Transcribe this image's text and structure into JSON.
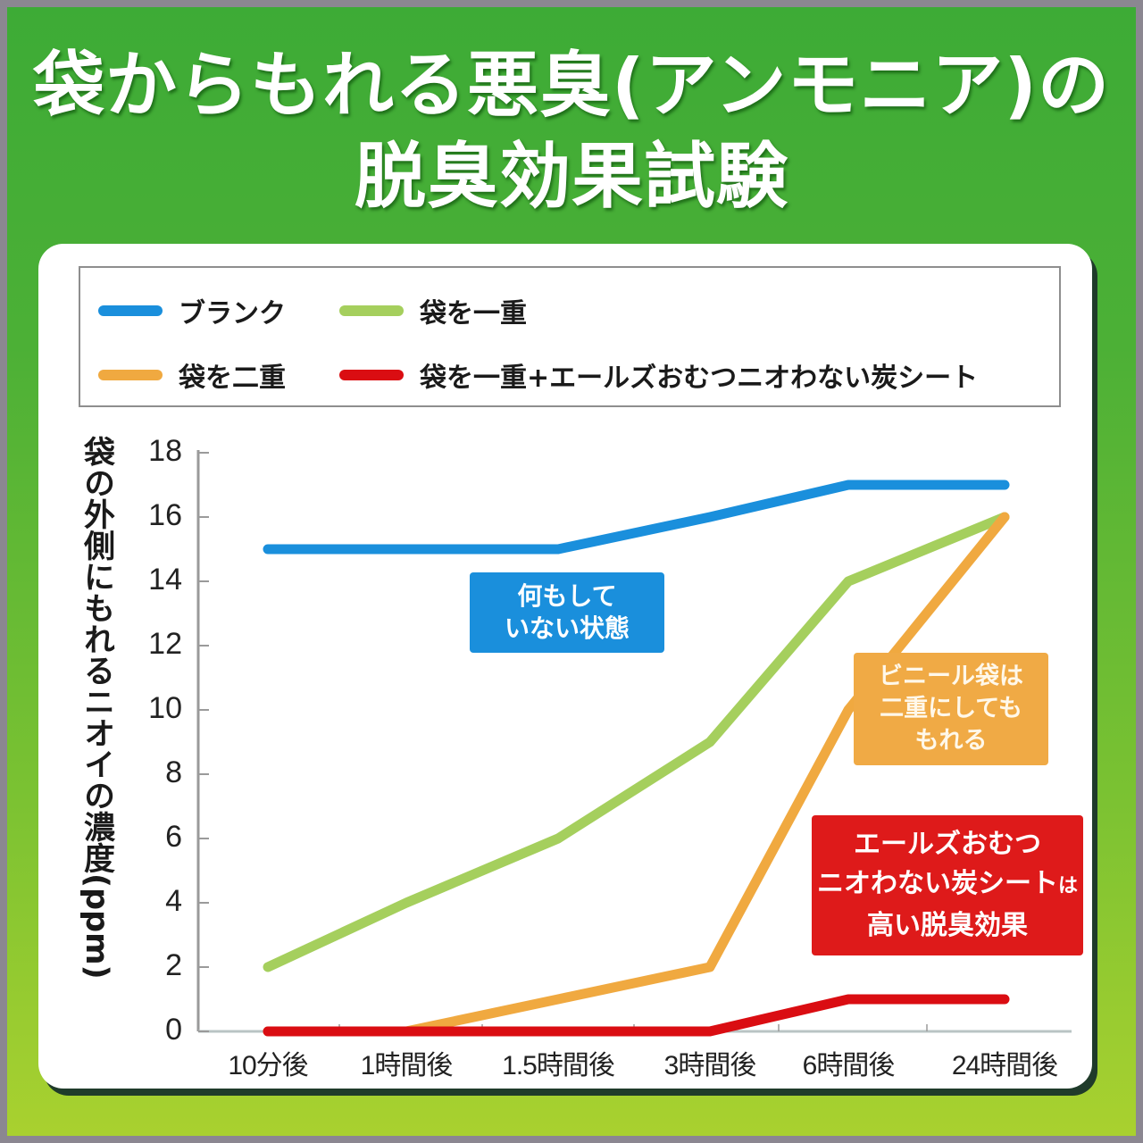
{
  "header": {
    "title_line1": "袋からもれる悪臭(アンモニア)の",
    "title_line2": "脱臭効果試験"
  },
  "legend": {
    "items": [
      {
        "label": "ブランク",
        "color": "#1a8fdc"
      },
      {
        "label": "袋を一重",
        "color": "#a5cf5d"
      },
      {
        "label": "袋を二重",
        "color": "#f0a940"
      },
      {
        "label": "袋を一重+エールズおむつニオわない炭シート",
        "color": "#da0d12"
      }
    ]
  },
  "axes": {
    "ylabel": "袋の外側にもれるニオイの濃度(ppm)",
    "yticks": [
      "18",
      "16",
      "14",
      "12",
      "10",
      "8",
      "6",
      "4",
      "2",
      "0"
    ],
    "xticks": [
      "10分後",
      "1時間後",
      "1.5時間後",
      "3時間後",
      "6時間後",
      "24時間後"
    ]
  },
  "callouts": {
    "blue": {
      "line1": "何もして",
      "line2": "いない状態",
      "color": "#1a8fdc"
    },
    "orange": {
      "line1": "ビニール袋は",
      "line2": "二重にしても",
      "line3": "もれる",
      "color": "#f0aa45"
    },
    "red": {
      "line1": "エールズおむつ",
      "line2a": "ニオわない炭シート",
      "line2b": "は",
      "line3": "高い脱臭効果",
      "color": "#de1a1a"
    }
  },
  "colors": {
    "frame_top": "#3dab36",
    "frame_bottom": "#a9d12f",
    "card": "#ffffff"
  },
  "chart_data": {
    "type": "line",
    "title": "袋からもれる悪臭(アンモニア)の脱臭効果試験",
    "xlabel": "",
    "ylabel": "袋の外側にもれるニオイの濃度(ppm)",
    "categories": [
      "10分後",
      "1時間後",
      "1.5時間後",
      "3時間後",
      "6時間後",
      "24時間後"
    ],
    "ylim": [
      0,
      18
    ],
    "yticks": [
      0,
      2,
      4,
      6,
      8,
      10,
      12,
      14,
      16,
      18
    ],
    "grid": false,
    "legend_position": "top",
    "series": [
      {
        "name": "ブランク",
        "color": "#1a8fdc",
        "values": [
          15,
          15,
          15,
          16,
          17,
          17
        ]
      },
      {
        "name": "袋を一重",
        "color": "#a5cf5d",
        "values": [
          2,
          4,
          6,
          9,
          14,
          16
        ]
      },
      {
        "name": "袋を二重",
        "color": "#f0a940",
        "values": [
          0,
          0,
          1,
          2,
          10,
          16
        ]
      },
      {
        "name": "袋を一重+エールズおむつニオわない炭シート",
        "color": "#da0d12",
        "values": [
          0,
          0,
          0,
          0,
          1,
          1
        ]
      }
    ],
    "annotations": [
      "何もしていない状態",
      "ビニール袋は二重にしてももれる",
      "エールズおむつニオわない炭シートは高い脱臭効果"
    ]
  }
}
